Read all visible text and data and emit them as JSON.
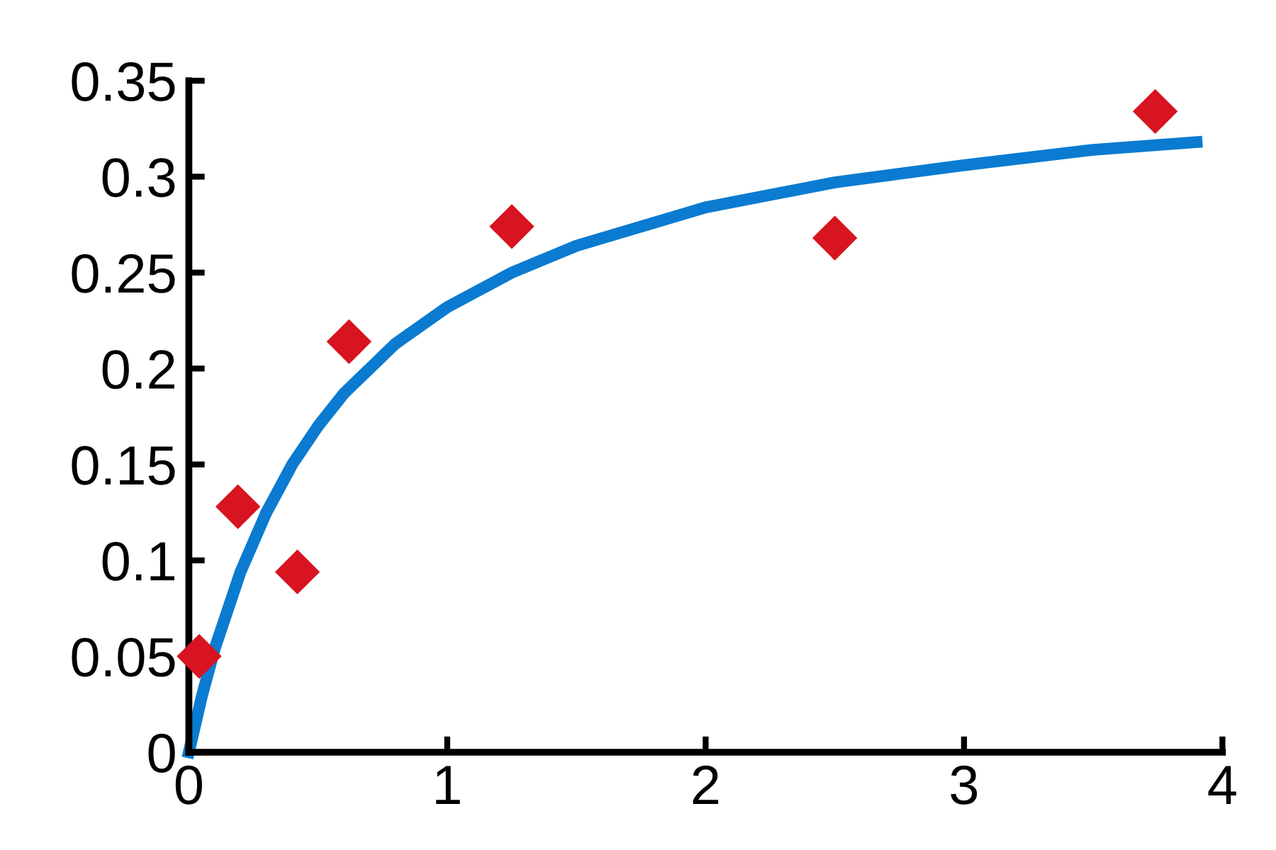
{
  "chart_data": {
    "type": "scatter",
    "xlim": [
      0,
      4
    ],
    "ylim": [
      0,
      0.35
    ],
    "xticks": [
      0,
      1,
      2,
      3,
      4
    ],
    "yticks": [
      0,
      0.05,
      0.1,
      0.15,
      0.2,
      0.25,
      0.3,
      0.35
    ],
    "grid": false,
    "legend": false,
    "series": [
      {
        "type": "line",
        "color": "#0a7bd0",
        "marker": "none",
        "line_style": "solid",
        "x": [
          0,
          0.05,
          0.1,
          0.2,
          0.3,
          0.4,
          0.5,
          0.6,
          0.8,
          1,
          1.25,
          1.5,
          2,
          2.5,
          3,
          3.5,
          3.9
        ],
        "values": [
          0,
          0.029,
          0.054,
          0.094,
          0.125,
          0.15,
          0.17,
          0.187,
          0.213,
          0.232,
          0.25,
          0.264,
          0.284,
          0.297,
          0.306,
          0.314,
          0.318
        ]
      },
      {
        "color": "#d7141f",
        "marker": "diamond",
        "x": [
          0.04,
          0.19,
          0.42,
          0.62,
          1.25,
          2.5,
          3.74
        ],
        "values": [
          0.05,
          0.128,
          0.094,
          0.214,
          0.274,
          0.268,
          0.334
        ]
      }
    ]
  }
}
